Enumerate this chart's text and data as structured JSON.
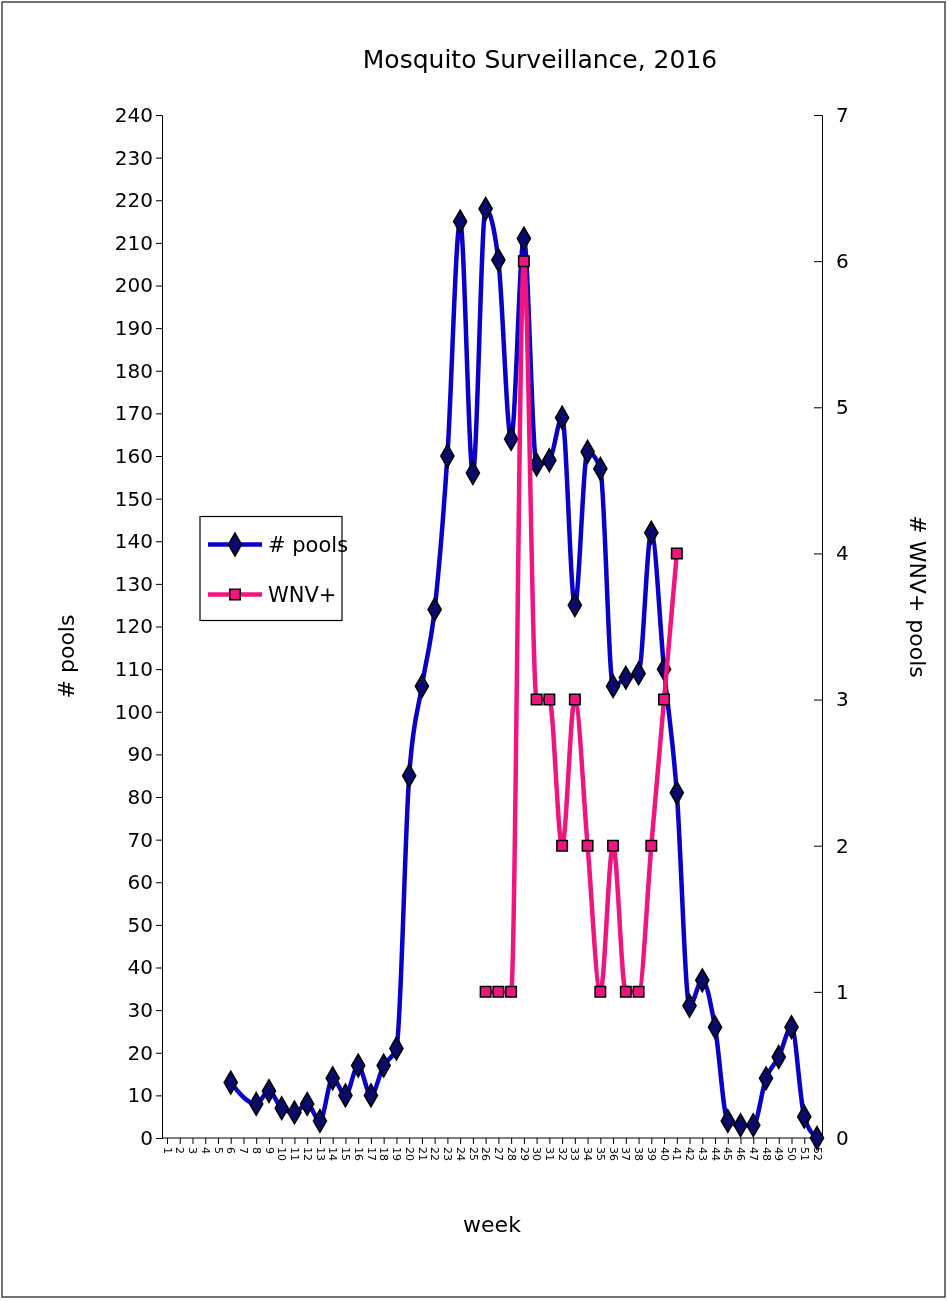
{
  "chart_data": {
    "type": "line",
    "title": "Mosquito Surveillance, 2016",
    "xlabel": "week",
    "ylabel": "# pools",
    "y2label": "# WNV+ pools",
    "categories": [
      "1",
      "2",
      "3",
      "4",
      "5",
      "6",
      "7",
      "8",
      "9",
      "10",
      "11",
      "12",
      "13",
      "14",
      "15",
      "16",
      "17",
      "18",
      "19",
      "20",
      "21",
      "22",
      "23",
      "24",
      "25",
      "26",
      "27",
      "28",
      "29",
      "30",
      "31",
      "32",
      "33",
      "34",
      "35",
      "36",
      "37",
      "38",
      "39",
      "40",
      "41",
      "42",
      "43",
      "44",
      "45",
      "46",
      "47",
      "48",
      "49",
      "50",
      "51",
      "52"
    ],
    "series": [
      {
        "name": "# pools",
        "color": "#0a00c8",
        "marker": "diamond",
        "values": [
          null,
          null,
          null,
          null,
          null,
          13,
          null,
          8,
          11,
          7,
          6,
          8,
          4,
          14,
          10,
          17,
          10,
          17,
          21,
          85,
          106,
          124,
          160,
          215,
          156,
          218,
          206,
          164,
          211,
          158,
          159,
          169,
          125,
          161,
          157,
          106,
          108,
          109,
          142,
          110,
          81,
          31,
          37,
          26,
          4,
          3,
          3,
          14,
          19,
          26,
          5,
          0
        ]
      },
      {
        "name": "WNV+",
        "color": "#f0147f",
        "marker": "square",
        "axis": "y2",
        "values": [
          null,
          null,
          null,
          null,
          null,
          null,
          null,
          null,
          null,
          null,
          null,
          null,
          null,
          null,
          null,
          null,
          null,
          null,
          null,
          null,
          null,
          null,
          null,
          null,
          null,
          1,
          1,
          1,
          6,
          3,
          3,
          2,
          3,
          2,
          1,
          2,
          1,
          1,
          2,
          3,
          4,
          null,
          null,
          null,
          null,
          null,
          null,
          null,
          null,
          null,
          null,
          null
        ]
      }
    ],
    "ylim": [
      0,
      240
    ],
    "yticks": [
      0,
      10,
      20,
      30,
      40,
      50,
      60,
      70,
      80,
      90,
      100,
      110,
      120,
      130,
      140,
      150,
      160,
      170,
      180,
      190,
      200,
      210,
      220,
      230,
      240
    ],
    "y2lim": [
      0,
      7
    ],
    "y2ticks": [
      0,
      1,
      2,
      3,
      4,
      5,
      6,
      7
    ],
    "grid": false,
    "legend": "left"
  }
}
